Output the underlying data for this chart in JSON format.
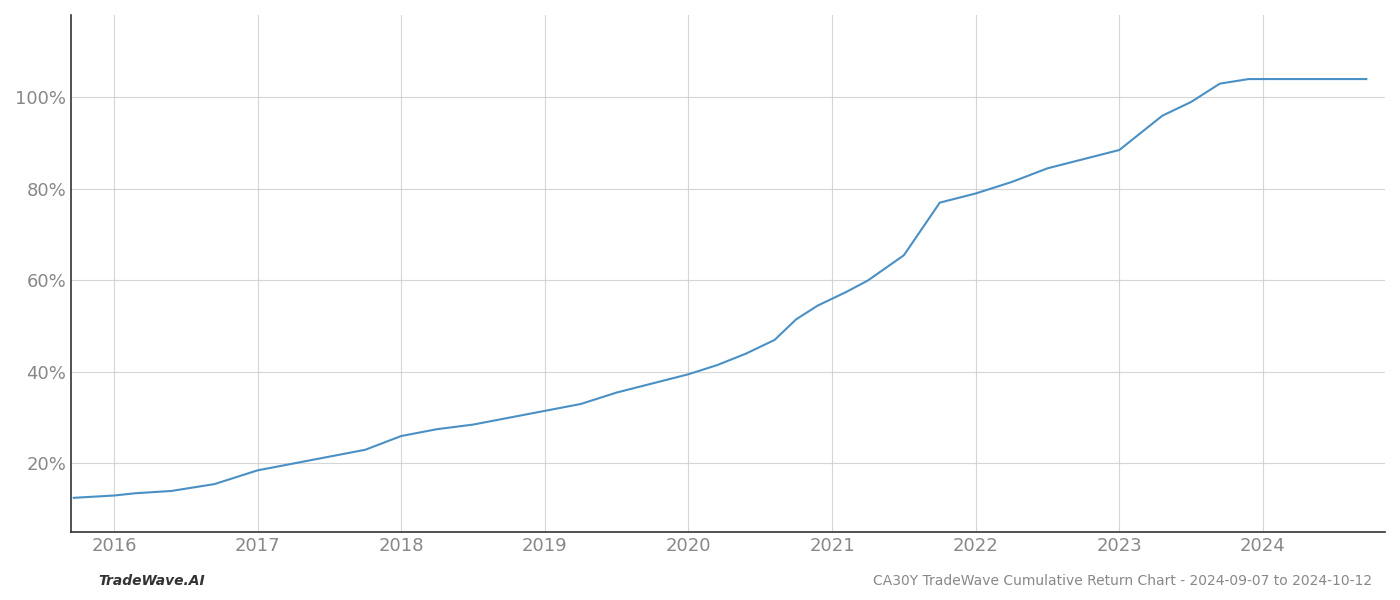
{
  "x_values": [
    2015.72,
    2016.0,
    2016.15,
    2016.4,
    2016.7,
    2017.0,
    2017.25,
    2017.5,
    2017.75,
    2018.0,
    2018.25,
    2018.5,
    2018.75,
    2019.0,
    2019.25,
    2019.5,
    2019.75,
    2020.0,
    2020.2,
    2020.4,
    2020.6,
    2020.75,
    2020.9,
    2021.1,
    2021.25,
    2021.5,
    2021.75,
    2022.0,
    2022.25,
    2022.5,
    2022.75,
    2023.0,
    2023.1,
    2023.2,
    2023.3,
    2023.5,
    2023.6,
    2023.7,
    2023.8,
    2023.9,
    2024.0,
    2024.2,
    2024.5,
    2024.72
  ],
  "y_values": [
    0.125,
    0.13,
    0.135,
    0.14,
    0.155,
    0.185,
    0.2,
    0.215,
    0.23,
    0.26,
    0.275,
    0.285,
    0.3,
    0.315,
    0.33,
    0.355,
    0.375,
    0.395,
    0.415,
    0.44,
    0.47,
    0.515,
    0.545,
    0.575,
    0.6,
    0.655,
    0.77,
    0.79,
    0.815,
    0.845,
    0.865,
    0.885,
    0.91,
    0.935,
    0.96,
    0.99,
    1.01,
    1.03,
    1.035,
    1.04,
    1.04,
    1.04,
    1.04,
    1.04
  ],
  "line_color": "#4a90c4",
  "line_width": 1.5,
  "xlim": [
    2015.7,
    2024.85
  ],
  "ylim": [
    0.05,
    1.18
  ],
  "yticks": [
    0.2,
    0.4,
    0.6,
    0.8,
    1.0
  ],
  "ytick_labels": [
    "20%",
    "40%",
    "60%",
    "80%",
    "100%"
  ],
  "xticks": [
    2016,
    2017,
    2018,
    2019,
    2020,
    2021,
    2022,
    2023,
    2024
  ],
  "xtick_labels": [
    "2016",
    "2017",
    "2018",
    "2019",
    "2020",
    "2021",
    "2022",
    "2023",
    "2024"
  ],
  "grid_color": "#cccccc",
  "grid_alpha": 0.8,
  "bg_color": "#ffffff",
  "footer_left": "TradeWave.AI",
  "footer_right": "CA30Y TradeWave Cumulative Return Chart - 2024-09-07 to 2024-10-12",
  "tick_fontsize": 13,
  "footer_fontsize": 10,
  "spine_left_color": "#333333",
  "spine_bottom_color": "#333333"
}
